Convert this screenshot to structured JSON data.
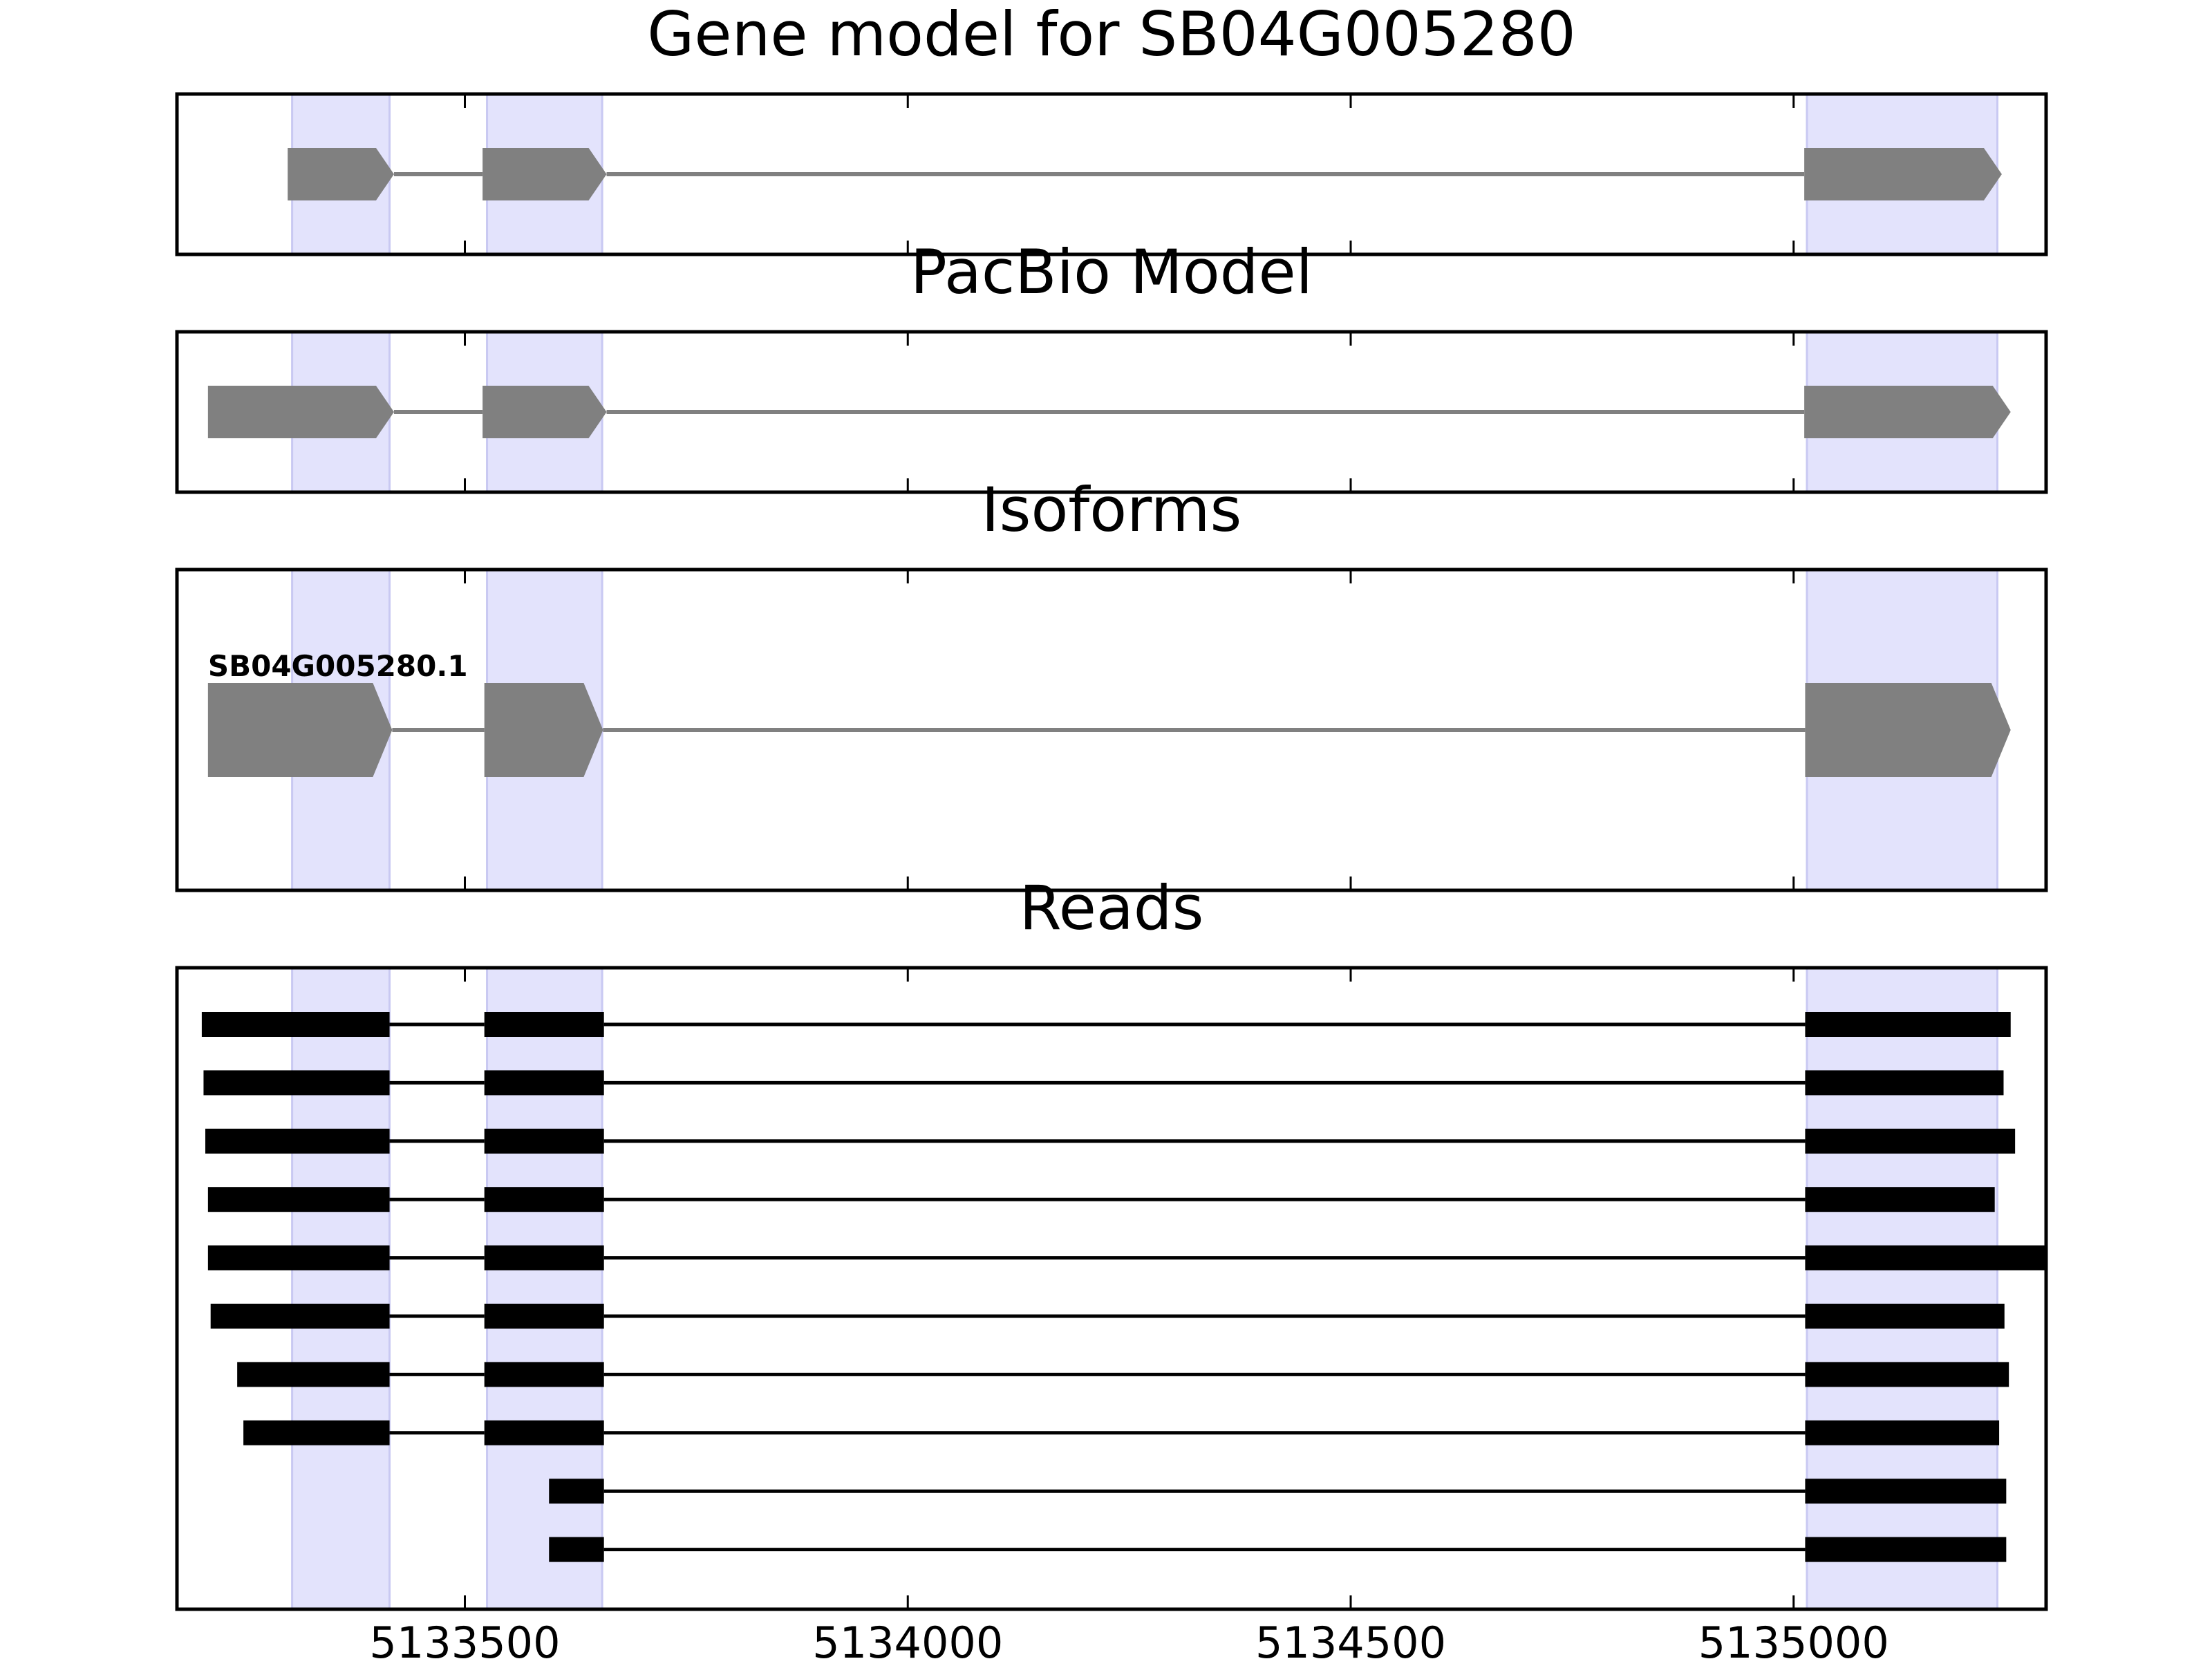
{
  "chart_data": {
    "type": "gene-track",
    "x_range": [
      5133175,
      5135285
    ],
    "x_ticks": [
      5133500,
      5134000,
      5134500,
      5135000
    ],
    "x_tick_labels": [
      "5133500",
      "5134000",
      "5134500",
      "5135000"
    ],
    "highlight_color": "#e3e3fc",
    "gene_color": "#808080",
    "read_color": "#000000",
    "highlighted_exons": [
      [
        5133305,
        5133415
      ],
      [
        5133525,
        5133655
      ],
      [
        5135015,
        5135230
      ]
    ],
    "panels": [
      {
        "id": "gene-model",
        "title": "Gene model for SB04G005280",
        "rows": [
          {
            "exons": [
              [
                5133300,
                5133420
              ],
              [
                5133520,
                5133660
              ],
              [
                5135012,
                5135235
              ]
            ]
          }
        ]
      },
      {
        "id": "pacbio-model",
        "title": "PacBio Model",
        "rows": [
          {
            "exons": [
              [
                5133210,
                5133420
              ],
              [
                5133520,
                5133660
              ],
              [
                5135012,
                5135245
              ]
            ]
          }
        ]
      },
      {
        "id": "isoforms",
        "title": "Isoforms",
        "rows": [
          {
            "label": "SB04G005280.1",
            "exons": [
              [
                5133210,
                5133418
              ],
              [
                5133522,
                5133656
              ],
              [
                5135013,
                5135245
              ]
            ]
          }
        ]
      },
      {
        "id": "reads",
        "title": "Reads",
        "rows": [
          {
            "exons": [
              [
                5133203,
                5133415
              ],
              [
                5133522,
                5133657
              ],
              [
                5135013,
                5135245
              ]
            ]
          },
          {
            "exons": [
              [
                5133205,
                5133415
              ],
              [
                5133522,
                5133657
              ],
              [
                5135013,
                5135237
              ]
            ]
          },
          {
            "exons": [
              [
                5133207,
                5133415
              ],
              [
                5133522,
                5133657
              ],
              [
                5135013,
                5135250
              ]
            ]
          },
          {
            "exons": [
              [
                5133210,
                5133415
              ],
              [
                5133522,
                5133657
              ],
              [
                5135013,
                5135227
              ]
            ]
          },
          {
            "exons": [
              [
                5133210,
                5133415
              ],
              [
                5133522,
                5133657
              ],
              [
                5135013,
                5135285
              ]
            ]
          },
          {
            "exons": [
              [
                5133213,
                5133415
              ],
              [
                5133522,
                5133657
              ],
              [
                5135013,
                5135238
              ]
            ]
          },
          {
            "exons": [
              [
                5133243,
                5133415
              ],
              [
                5133522,
                5133657
              ],
              [
                5135013,
                5135243
              ]
            ]
          },
          {
            "exons": [
              [
                5133250,
                5133415
              ],
              [
                5133522,
                5133657
              ],
              [
                5135013,
                5135232
              ]
            ]
          },
          {
            "exons": [
              [
                5133595,
                5133657
              ],
              [
                5135013,
                5135240
              ]
            ]
          },
          {
            "exons": [
              [
                5133595,
                5133657
              ],
              [
                5135013,
                5135240
              ]
            ]
          }
        ]
      }
    ]
  }
}
